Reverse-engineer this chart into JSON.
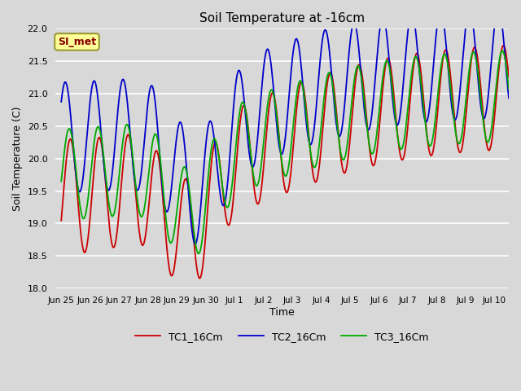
{
  "title": "Soil Temperature at -16cm",
  "xlabel": "Time",
  "ylabel": "Soil Temperature (C)",
  "ylim": [
    18.0,
    22.0
  ],
  "yticks": [
    18.0,
    18.5,
    19.0,
    19.5,
    20.0,
    20.5,
    21.0,
    21.5,
    22.0
  ],
  "bg_color": "#d8d8d8",
  "plot_bg_color": "#d8d8d8",
  "grid_color": "white",
  "line_colors": {
    "TC1": "#cc0000",
    "TC2": "#0000cc",
    "TC3": "#00aa00"
  },
  "line_width": 1.3,
  "legend_labels": [
    "TC1_16Cm",
    "TC2_16Cm",
    "TC3_16Cm"
  ],
  "annotation_text": "SI_met",
  "annotation_bg": "#ffff99",
  "annotation_border": "#999933",
  "annotation_text_color": "#880000",
  "x_tick_labels": [
    "Jun 25",
    "Jun 26",
    "Jun 27",
    "Jun 28",
    "Jun 29",
    "Jun 30",
    "Jul 1",
    "Jul 2",
    "Jul 3",
    "Jul 4",
    "Jul 5",
    "Jul 6",
    "Jul 7",
    "Jul 8",
    "Jul 9",
    "Jul 10"
  ],
  "x_tick_positions": [
    0,
    1,
    2,
    3,
    4,
    5,
    6,
    7,
    8,
    9,
    10,
    11,
    12,
    13,
    14,
    15
  ]
}
